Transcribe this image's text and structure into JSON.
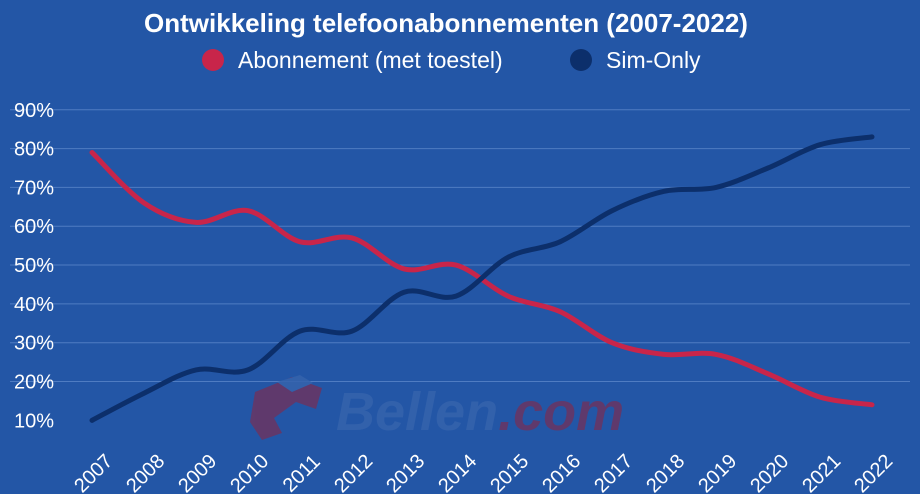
{
  "chart_data": {
    "type": "line",
    "title": "Ontwikkeling telefoonabonnementen (2007-2022)",
    "x": [
      "2007",
      "2008",
      "2009",
      "2010",
      "2011",
      "2012",
      "2013",
      "2014",
      "2015",
      "2016",
      "2017",
      "2018",
      "2019",
      "2020",
      "2021",
      "2022"
    ],
    "yticks": [
      "10%",
      "20%",
      "30%",
      "40%",
      "50%",
      "60%",
      "70%",
      "80%",
      "90%"
    ],
    "ylim": [
      7,
      92
    ],
    "grid": true,
    "legend_position": "top",
    "series": [
      {
        "name": "Abonnement (met toestel)",
        "color": "#c8254a",
        "values": [
          79,
          66,
          61,
          64,
          56,
          57,
          49,
          50,
          42,
          38,
          30,
          27,
          27,
          22,
          16,
          14
        ]
      },
      {
        "name": "Sim-Only",
        "color": "#0c2f6b",
        "values": [
          10,
          17,
          23,
          23,
          33,
          33,
          43,
          42,
          52,
          56,
          64,
          69,
          70,
          75,
          81,
          83
        ]
      }
    ]
  },
  "watermark": {
    "text_main": "Bellen",
    "text_suffix": ".com",
    "main_color": "#3563ad",
    "suffix_color": "#6a3563"
  },
  "colors": {
    "background": "#2356a6",
    "grid": "#4f7cc2",
    "text": "#ffffff"
  }
}
